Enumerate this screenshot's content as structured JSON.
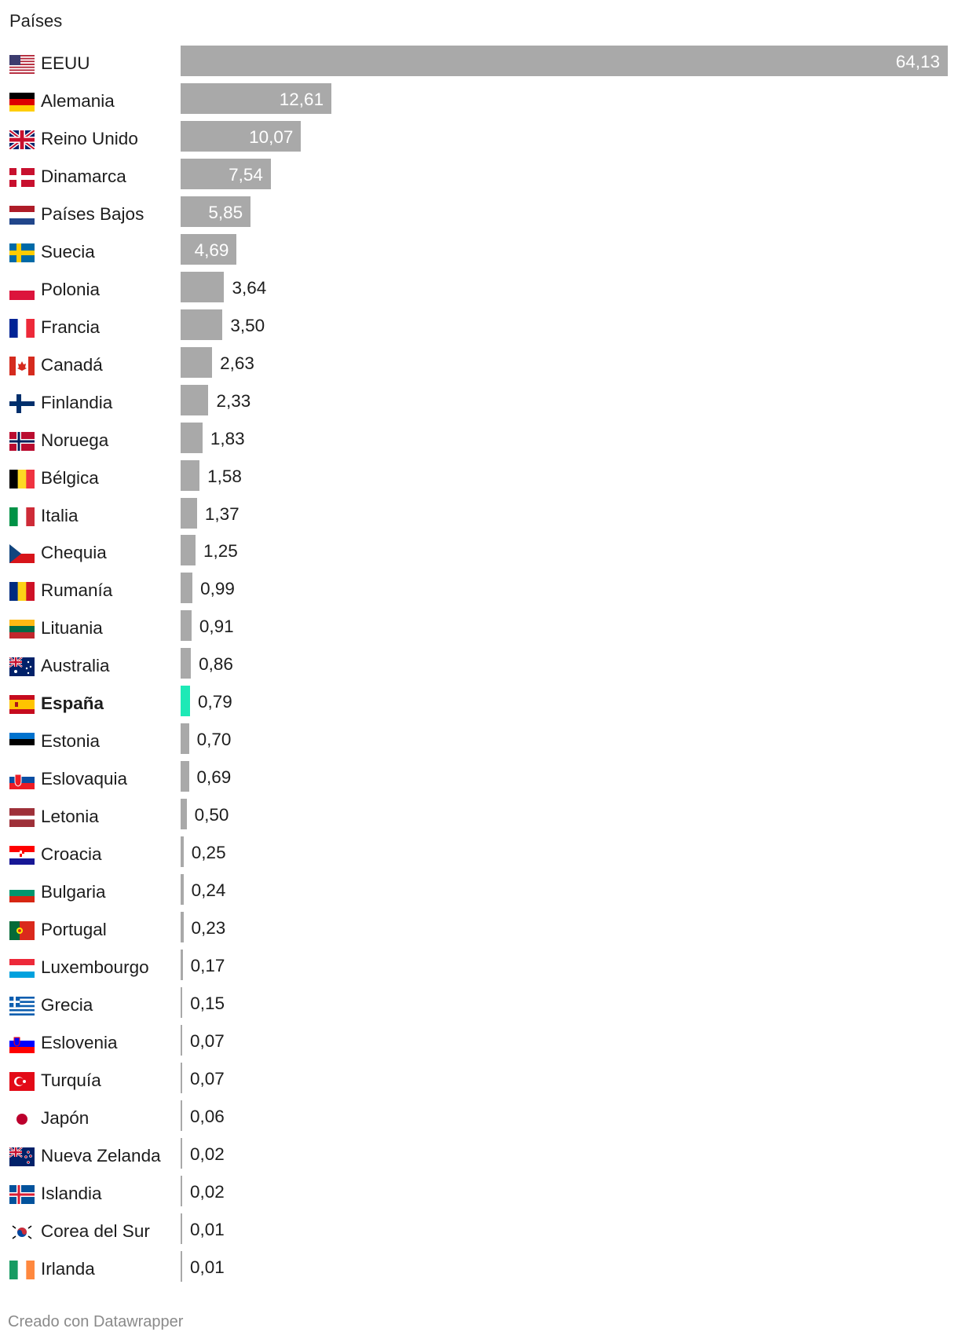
{
  "title": "Países",
  "footer": "Creado con Datawrapper",
  "chart_data": {
    "type": "bar",
    "orientation": "horizontal",
    "title": "",
    "column_header": "Países",
    "bar_color": "#a9a9a9",
    "highlight_color": "#1de9b6",
    "highlight": "España",
    "categories": [
      "EEUU",
      "Alemania",
      "Reino Unido",
      "Dinamarca",
      "Países Bajos",
      "Suecia",
      "Polonia",
      "Francia",
      "Canadá",
      "Finlandia",
      "Noruega",
      "Bélgica",
      "Italia",
      "Chequia",
      "Rumanía",
      "Lituania",
      "Australia",
      "España",
      "Estonia",
      "Eslovaquia",
      "Letonia",
      "Croacia",
      "Bulgaria",
      "Portugal",
      "Luxembourgo",
      "Grecia",
      "Eslovenia",
      "Turquía",
      "Japón",
      "Nueva Zelanda",
      "Islandia",
      "Corea del Sur",
      "Irlanda"
    ],
    "labels": [
      "64,13",
      "12,61",
      "10,07",
      "7,54",
      "5,85",
      "4,69",
      "3,64",
      "3,50",
      "2,63",
      "2,33",
      "1,83",
      "1,58",
      "1,37",
      "1,25",
      "0,99",
      "0,91",
      "0,86",
      "0,79",
      "0,70",
      "0,69",
      "0,50",
      "0,25",
      "0,24",
      "0,23",
      "0,17",
      "0,15",
      "0,07",
      "0,07",
      "0,06",
      "0,02",
      "0,02",
      "0,01",
      "0,01"
    ],
    "values": [
      64.13,
      12.61,
      10.07,
      7.54,
      5.85,
      4.69,
      3.64,
      3.5,
      2.63,
      2.33,
      1.83,
      1.58,
      1.37,
      1.25,
      0.99,
      0.91,
      0.86,
      0.79,
      0.7,
      0.69,
      0.5,
      0.25,
      0.24,
      0.23,
      0.17,
      0.15,
      0.07,
      0.07,
      0.06,
      0.02,
      0.02,
      0.01,
      0.01
    ],
    "flag_icons": [
      "us",
      "de",
      "gb",
      "dk",
      "nl",
      "se",
      "pl",
      "fr",
      "ca",
      "fi",
      "no",
      "be",
      "it",
      "cz",
      "ro",
      "lt",
      "au",
      "es",
      "ee",
      "sk",
      "lv",
      "hr",
      "bg",
      "pt",
      "lu",
      "gr",
      "si",
      "tr",
      "jp",
      "nz",
      "is",
      "kr",
      "ie"
    ]
  }
}
